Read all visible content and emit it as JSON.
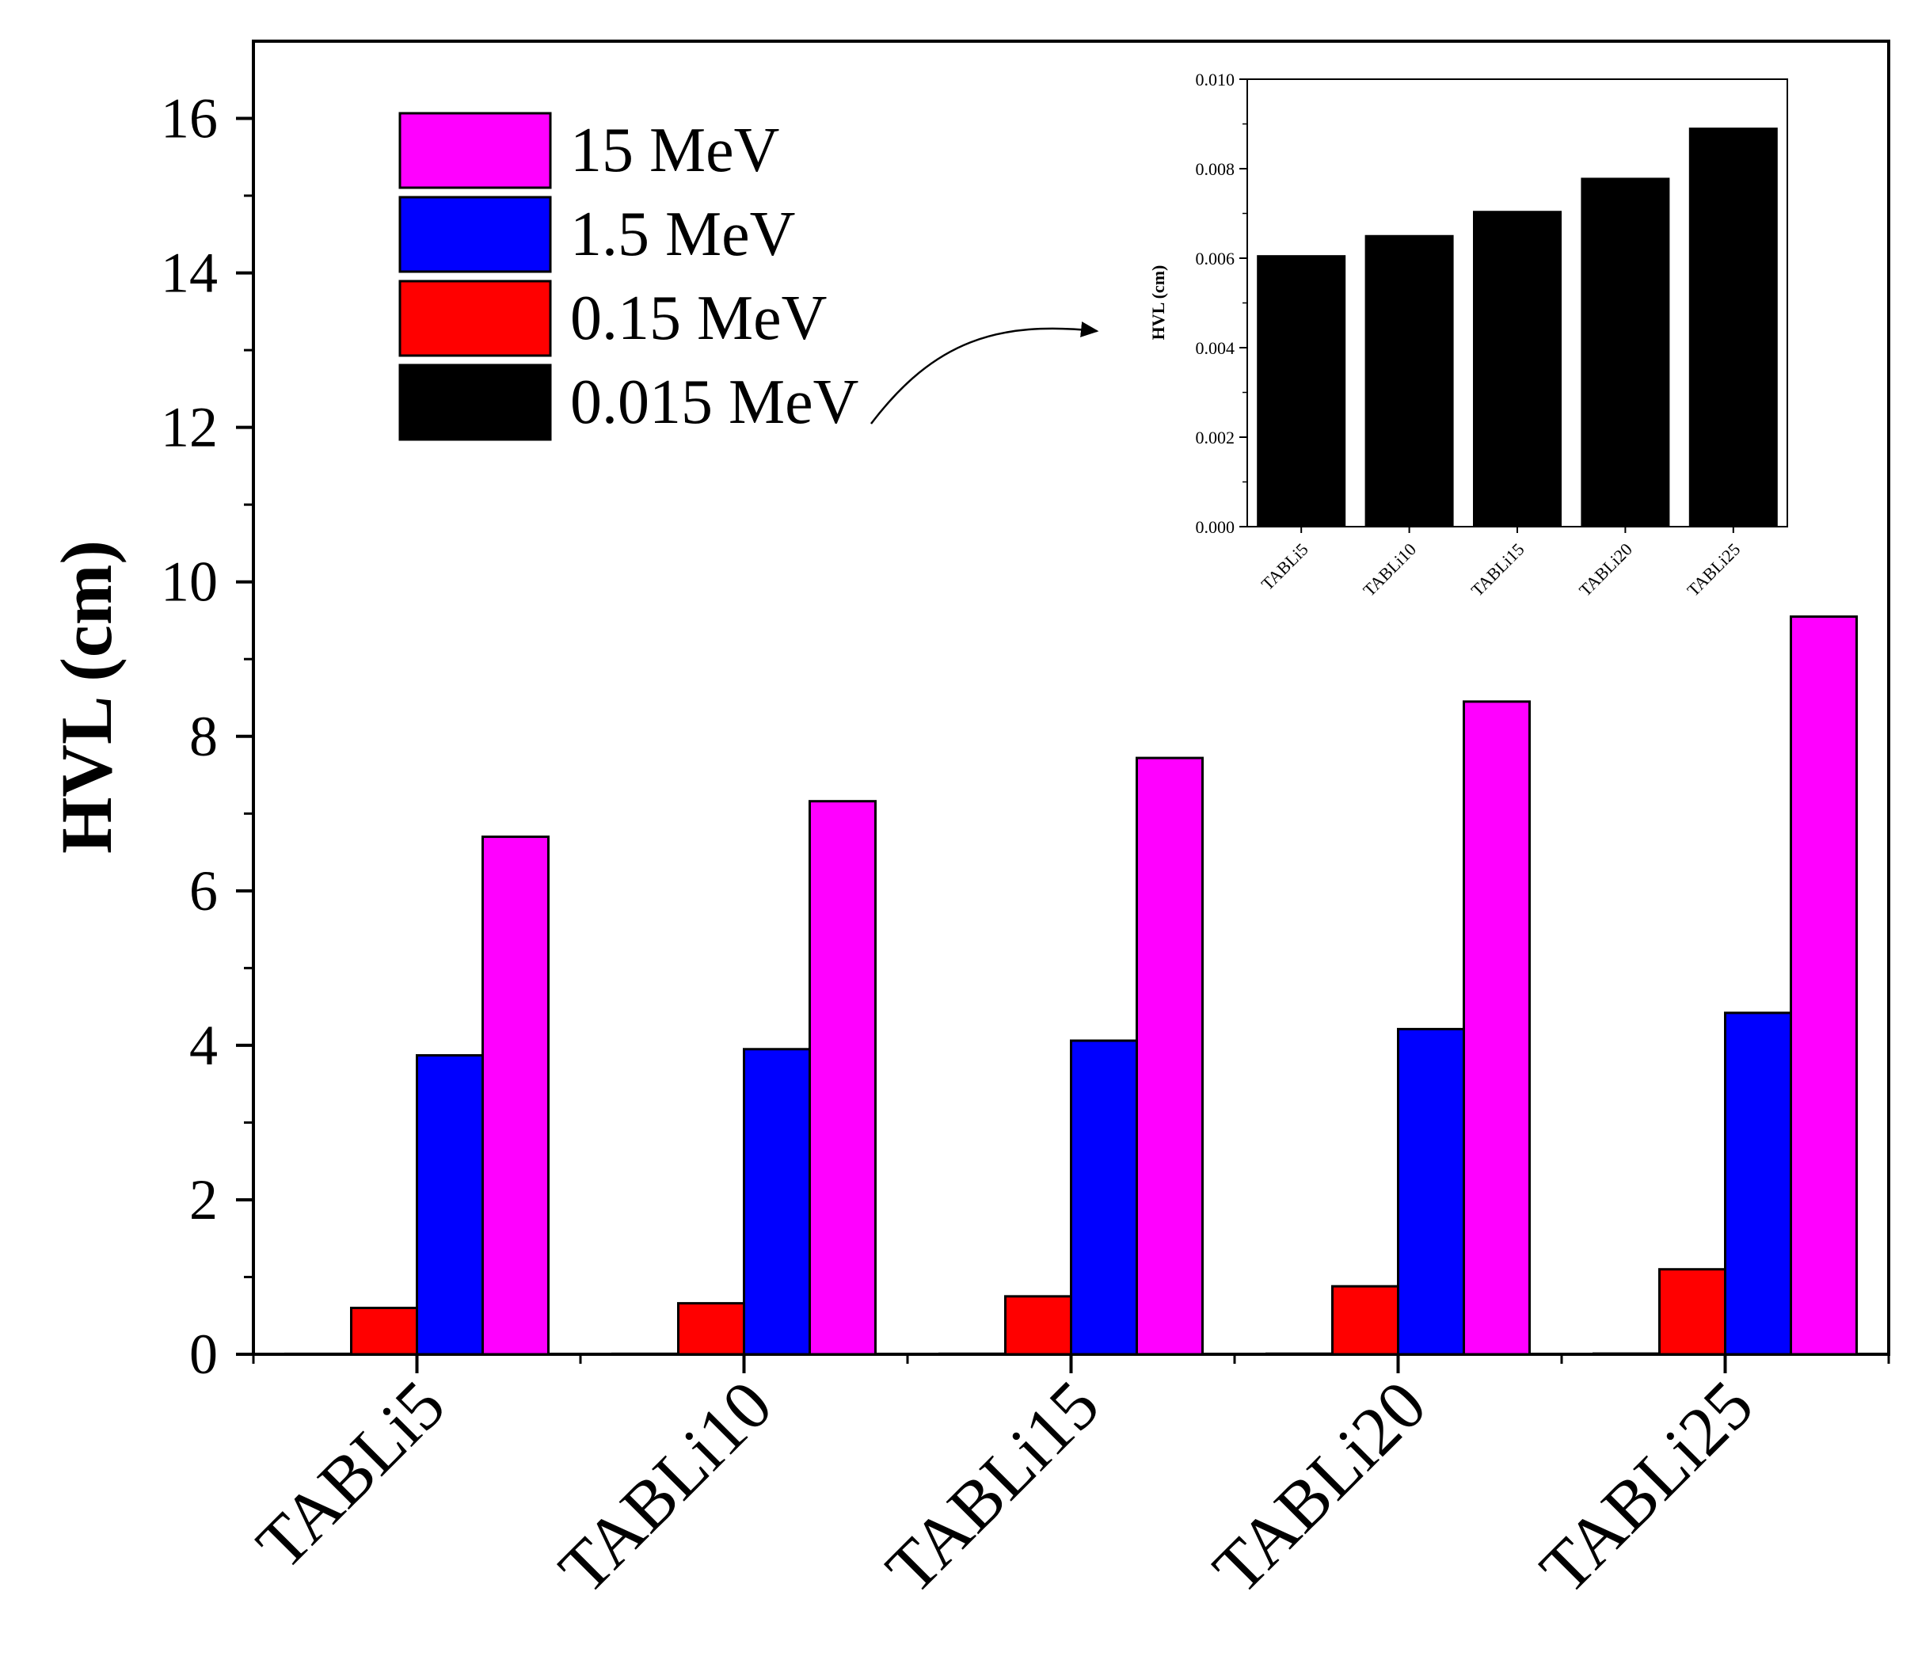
{
  "chart_data": [
    {
      "type": "bar",
      "categories": [
        "TABLi5",
        "TABLi10",
        "TABLi15",
        "TABLi20",
        "TABLi25"
      ],
      "series": [
        {
          "name": "0.015 MeV",
          "color": "#000000",
          "values": [
            0.006,
            0.0065,
            0.007,
            0.0078,
            0.0089
          ]
        },
        {
          "name": "0.15 MeV",
          "color": "#ff0000",
          "values": [
            0.6,
            0.66,
            0.75,
            0.88,
            1.1
          ]
        },
        {
          "name": "1.5 MeV",
          "color": "#0000ff",
          "values": [
            3.87,
            3.95,
            4.06,
            4.21,
            4.42
          ]
        },
        {
          "name": "15 MeV",
          "color": "#ff00ff",
          "values": [
            6.7,
            7.16,
            7.72,
            8.45,
            9.55
          ]
        }
      ],
      "legend_order": [
        "15 MeV",
        "1.5 MeV",
        "0.15 MeV",
        "0.015 MeV"
      ],
      "legend_position": "top-left",
      "xlabel": "",
      "ylabel": "HVL (cm)",
      "ylim": [
        0,
        17
      ],
      "yticks": [
        "0",
        "2",
        "4",
        "6",
        "8",
        "10",
        "12",
        "14",
        "16"
      ],
      "ytick_values": [
        0,
        2,
        4,
        6,
        8,
        10,
        12,
        14,
        16
      ],
      "grid": false
    },
    {
      "type": "bar",
      "role": "inset",
      "series_name": "0.015 MeV",
      "categories": [
        "TABLi5",
        "TABLi10",
        "TABLi15",
        "TABLi20",
        "TABLi25"
      ],
      "values": [
        0.00605,
        0.0065,
        0.00704,
        0.00778,
        0.0089
      ],
      "color": "#000000",
      "xlabel": "",
      "ylabel": "HVL (cm)",
      "ylim": [
        0,
        0.01
      ],
      "yticks": [
        "0.000",
        "0.002",
        "0.004",
        "0.006",
        "0.008",
        "0.010"
      ],
      "ytick_values": [
        0,
        0.002,
        0.004,
        0.006,
        0.008,
        0.01
      ],
      "grid": false
    }
  ]
}
